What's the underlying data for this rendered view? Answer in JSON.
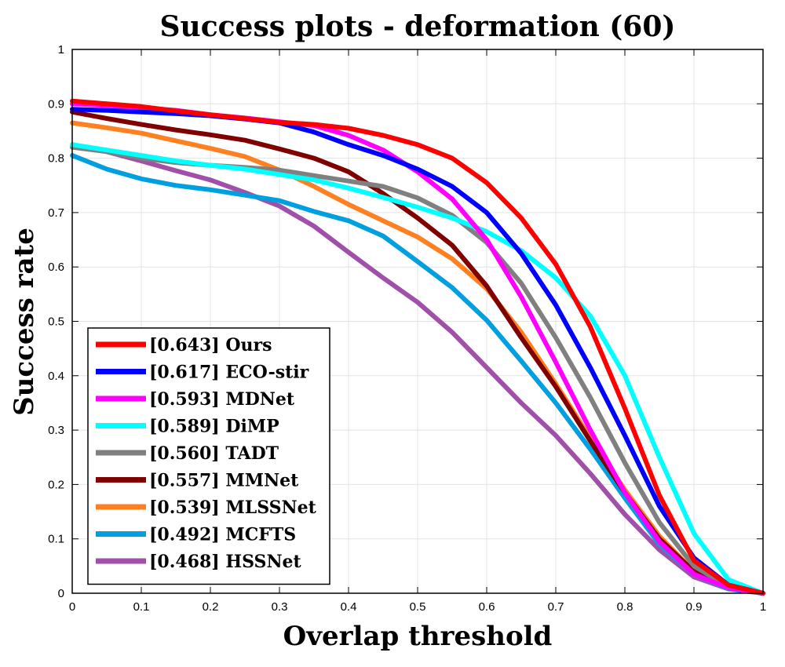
{
  "chart_data": {
    "type": "line",
    "title": "Success plots - deformation (60)",
    "xlabel": "Overlap threshold",
    "ylabel": "Success rate",
    "xlim": [
      0,
      1
    ],
    "ylim": [
      0,
      1
    ],
    "grid": true,
    "legend_position": "bottom-left",
    "x_ticks": [
      "0",
      "0.1",
      "0.2",
      "0.3",
      "0.4",
      "0.5",
      "0.6",
      "0.7",
      "0.8",
      "0.9",
      "1"
    ],
    "y_ticks": [
      "0",
      "0.1",
      "0.2",
      "0.3",
      "0.4",
      "0.5",
      "0.6",
      "0.7",
      "0.8",
      "0.9",
      "1"
    ],
    "x": [
      0,
      0.05,
      0.1,
      0.15,
      0.2,
      0.25,
      0.3,
      0.35,
      0.4,
      0.45,
      0.5,
      0.55,
      0.6,
      0.65,
      0.7,
      0.75,
      0.8,
      0.85,
      0.9,
      0.95,
      1.0
    ],
    "series": [
      {
        "name": "Ours",
        "legend_label": "[0.643] Ours",
        "color": "#ff0000",
        "values": [
          0.905,
          0.9,
          0.895,
          0.887,
          0.88,
          0.873,
          0.866,
          0.862,
          0.855,
          0.842,
          0.825,
          0.8,
          0.755,
          0.69,
          0.605,
          0.49,
          0.34,
          0.18,
          0.06,
          0.015,
          0.0
        ]
      },
      {
        "name": "ECO-stir",
        "legend_label": "[0.617] ECO-stir",
        "color": "#0000ff",
        "values": [
          0.89,
          0.888,
          0.885,
          0.882,
          0.878,
          0.872,
          0.865,
          0.848,
          0.825,
          0.805,
          0.78,
          0.748,
          0.7,
          0.625,
          0.53,
          0.415,
          0.29,
          0.16,
          0.065,
          0.015,
          0.0
        ]
      },
      {
        "name": "MDNet",
        "legend_label": "[0.593] MDNet",
        "color": "#ff00ff",
        "values": [
          0.9,
          0.897,
          0.893,
          0.888,
          0.88,
          0.874,
          0.867,
          0.86,
          0.842,
          0.815,
          0.775,
          0.725,
          0.65,
          0.545,
          0.425,
          0.3,
          0.185,
          0.095,
          0.035,
          0.01,
          0.0
        ]
      },
      {
        "name": "DiMP",
        "legend_label": "[0.589] DiMP",
        "color": "#00ffff",
        "values": [
          0.825,
          0.815,
          0.805,
          0.795,
          0.787,
          0.78,
          0.77,
          0.76,
          0.745,
          0.728,
          0.71,
          0.69,
          0.665,
          0.63,
          0.58,
          0.51,
          0.4,
          0.25,
          0.11,
          0.025,
          0.0
        ]
      },
      {
        "name": "TADT",
        "legend_label": "[0.560] TADT",
        "color": "#808080",
        "values": [
          0.82,
          0.812,
          0.8,
          0.792,
          0.787,
          0.783,
          0.778,
          0.768,
          0.758,
          0.748,
          0.727,
          0.695,
          0.645,
          0.57,
          0.47,
          0.36,
          0.24,
          0.13,
          0.05,
          0.012,
          0.0
        ]
      },
      {
        "name": "MMNet",
        "legend_label": "[0.557] MMNet",
        "color": "#800000",
        "values": [
          0.885,
          0.873,
          0.862,
          0.852,
          0.843,
          0.833,
          0.817,
          0.8,
          0.775,
          0.735,
          0.69,
          0.64,
          0.565,
          0.47,
          0.38,
          0.28,
          0.185,
          0.1,
          0.04,
          0.01,
          0.0
        ]
      },
      {
        "name": "MLSSNet",
        "legend_label": "[0.539] MLSSNet",
        "color": "#ff8020",
        "values": [
          0.865,
          0.856,
          0.846,
          0.832,
          0.818,
          0.803,
          0.778,
          0.748,
          0.715,
          0.685,
          0.655,
          0.615,
          0.56,
          0.48,
          0.385,
          0.285,
          0.19,
          0.105,
          0.04,
          0.01,
          0.0
        ]
      },
      {
        "name": "MCFTS",
        "legend_label": "[0.492] MCFTS",
        "color": "#00a0e0",
        "values": [
          0.805,
          0.78,
          0.762,
          0.75,
          0.742,
          0.732,
          0.722,
          0.702,
          0.685,
          0.657,
          0.61,
          0.562,
          0.502,
          0.427,
          0.35,
          0.265,
          0.175,
          0.09,
          0.035,
          0.008,
          0.0
        ]
      },
      {
        "name": "HSSNet",
        "legend_label": "[0.468] HSSNet",
        "color": "#a050a8",
        "values": [
          0.825,
          0.812,
          0.795,
          0.777,
          0.76,
          0.737,
          0.712,
          0.675,
          0.627,
          0.58,
          0.535,
          0.48,
          0.415,
          0.35,
          0.29,
          0.22,
          0.145,
          0.08,
          0.03,
          0.008,
          0.0
        ]
      }
    ]
  }
}
